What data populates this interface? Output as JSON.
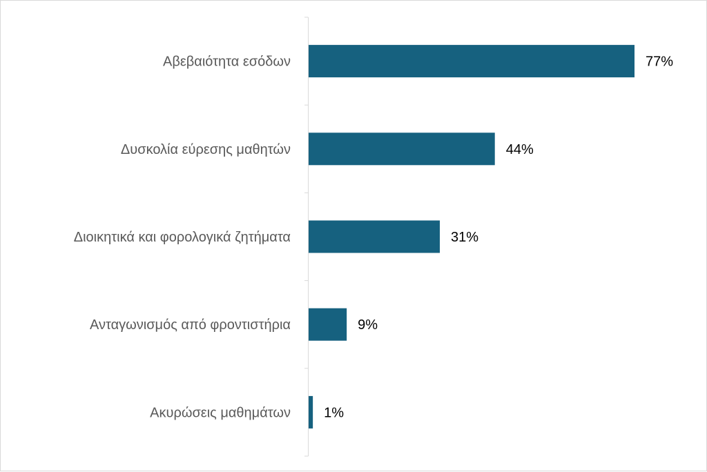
{
  "chart_data": {
    "type": "bar",
    "orientation": "horizontal",
    "categories": [
      "Αβεβαιότητα εσόδων",
      "Δυσκολία εύρεσης μαθητών",
      "Διοικητικά και φορολογικά ζητήματα",
      "Ανταγωνισμός από φροντιστήρια",
      "Ακυρώσεις μαθημάτων"
    ],
    "values": [
      77,
      44,
      31,
      9,
      1
    ],
    "value_labels": [
      "77%",
      "44%",
      "31%",
      "9%",
      "1%"
    ],
    "title": "",
    "xlabel": "",
    "ylabel": "",
    "xlim": [
      0,
      100
    ],
    "grid": false,
    "legend": "none",
    "bar_color": "#16617f"
  }
}
